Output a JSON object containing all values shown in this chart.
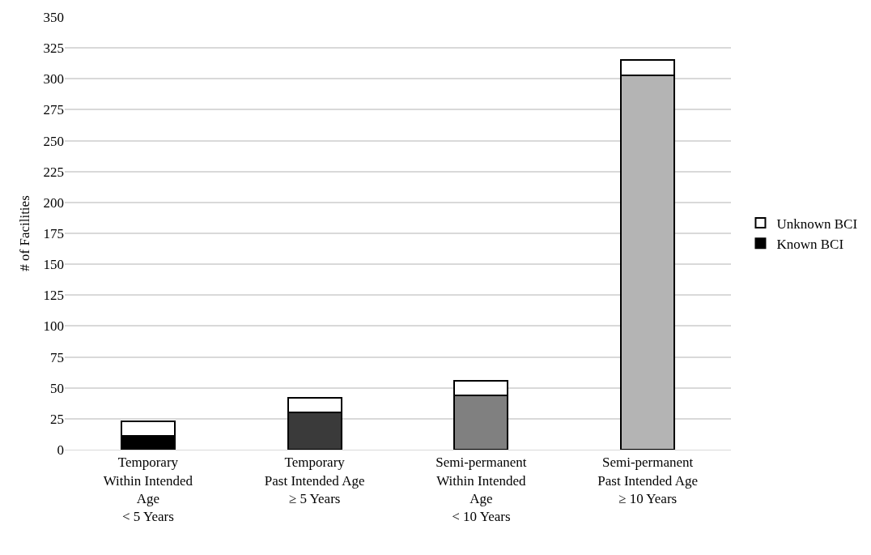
{
  "chart_data": {
    "type": "bar",
    "stacked": true,
    "ylabel": "# of Facilities",
    "categories": [
      "Temporary\nWithin Intended\nAge\n< 5 Years",
      "Temporary\nPast Intended Age\n≥ 5 Years",
      "Semi-permanent\nWithin Intended\nAge\n< 10 Years",
      "Semi-permanent\nPast Intended Age\n≥ 10 Years"
    ],
    "series": [
      {
        "name": "Known BCI",
        "colors": [
          "#000000",
          "#3a3a3a",
          "#808080",
          "#b4b4b4"
        ],
        "values": [
          11,
          30,
          44,
          303
        ]
      },
      {
        "name": "Unknown BCI",
        "color": "#ffffff",
        "values": [
          12,
          12,
          12,
          12
        ]
      }
    ],
    "ylim": [
      0,
      350
    ],
    "yticks": [
      0,
      25,
      50,
      75,
      100,
      125,
      150,
      175,
      200,
      225,
      250,
      275,
      300,
      325,
      350
    ],
    "grid": "y",
    "legend": "right"
  }
}
